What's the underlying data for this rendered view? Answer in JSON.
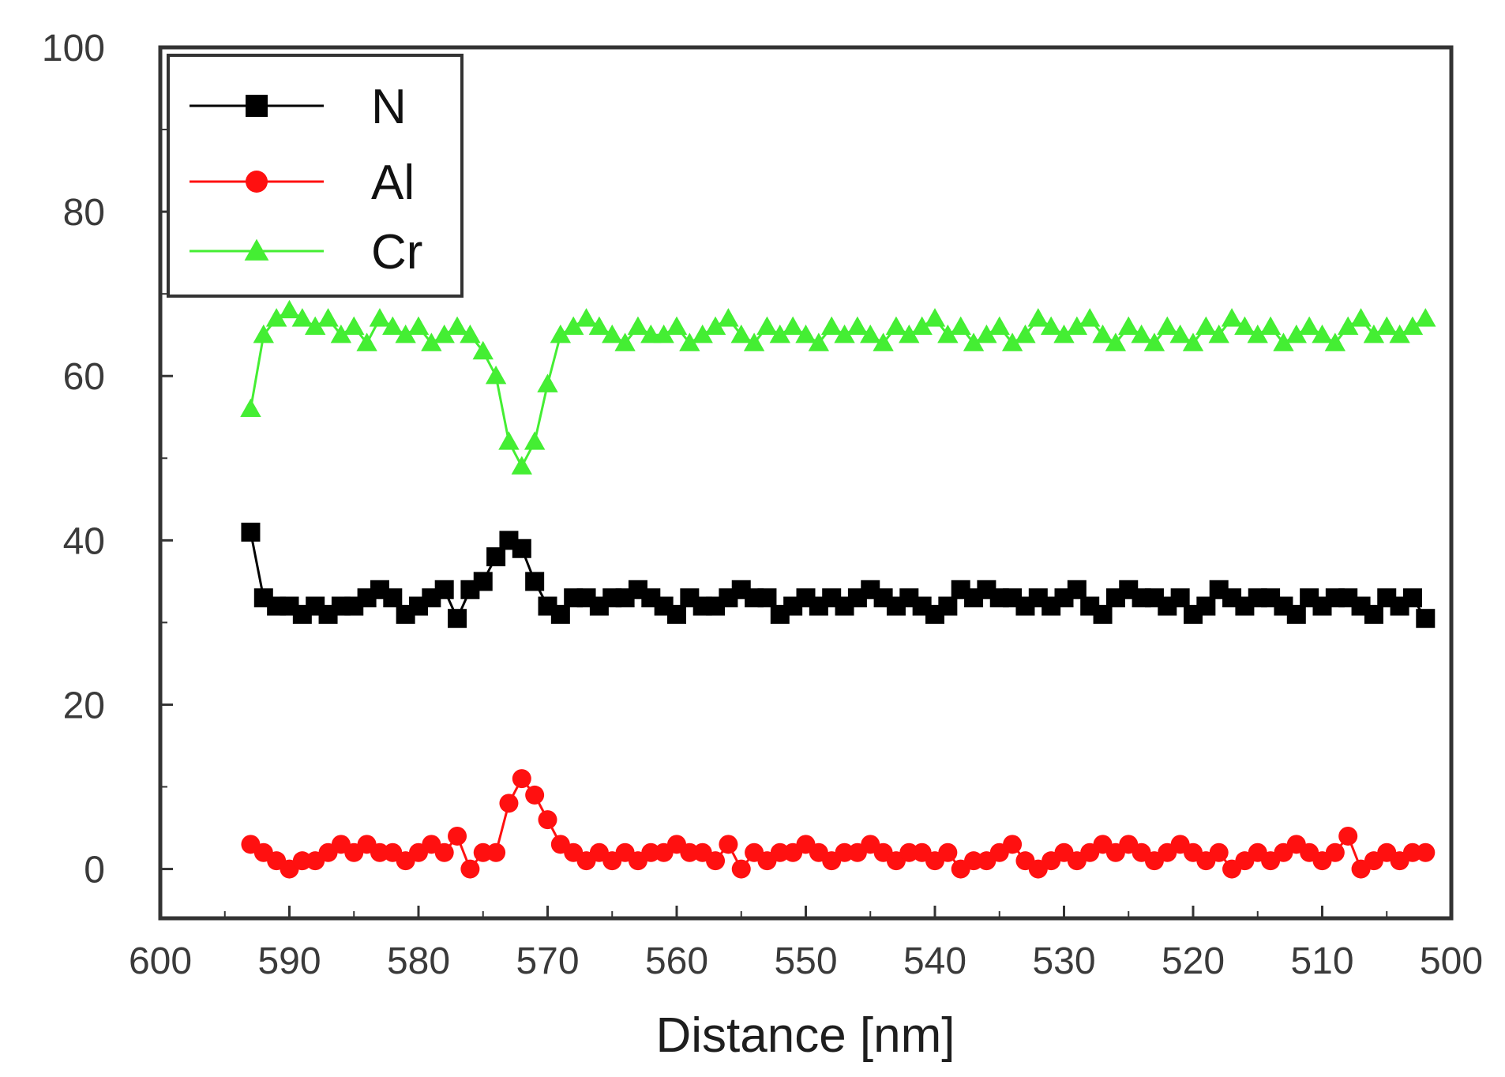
{
  "chart_data": {
    "type": "scatter",
    "title": "",
    "xlabel": "Distance [nm]",
    "ylabel": "",
    "xlim": [
      600,
      500
    ],
    "ylim": [
      -6,
      100
    ],
    "x_reversed": true,
    "xticks": [
      600,
      590,
      580,
      570,
      560,
      550,
      540,
      530,
      520,
      510,
      500
    ],
    "xtick_labels": [
      "600",
      "590",
      "580",
      "570",
      "560",
      "550",
      "540",
      "530",
      "520",
      "510",
      "500"
    ],
    "yticks": [
      0,
      20,
      40,
      60,
      80,
      100
    ],
    "ytick_labels": [
      "0",
      "20",
      "40",
      "60",
      "80",
      "100"
    ],
    "grid": false,
    "legend_position": "top-left",
    "series": [
      {
        "name": "N",
        "color": "#000000",
        "marker": "square",
        "x": [
          593,
          592,
          591,
          590,
          589,
          588,
          587,
          586,
          585,
          584,
          583,
          582,
          581,
          580,
          579,
          578,
          577,
          576,
          575,
          574,
          573,
          572,
          571,
          570,
          569,
          568,
          567,
          566,
          565,
          564,
          563,
          562,
          561,
          560,
          559,
          558,
          557,
          556,
          555,
          554,
          553,
          552,
          551,
          550,
          549,
          548,
          547,
          546,
          545,
          544,
          543,
          542,
          541,
          540,
          539,
          538,
          537,
          536,
          535,
          534,
          533,
          532,
          531,
          530,
          529,
          528,
          527,
          526,
          525,
          524,
          523,
          522,
          521,
          520,
          519,
          518,
          517,
          516,
          515,
          514,
          513,
          512,
          511,
          510,
          509,
          508,
          507,
          506,
          505,
          504,
          503,
          502
        ],
        "y": [
          41,
          33,
          32,
          32,
          31,
          32,
          31,
          32,
          32,
          33,
          34,
          33,
          31,
          32,
          33,
          34,
          30.5,
          34,
          35,
          38,
          40,
          39,
          35,
          32,
          31,
          33,
          33,
          32,
          33,
          33,
          34,
          33,
          32,
          31,
          33,
          32,
          32,
          33,
          34,
          33,
          33,
          31,
          32,
          33,
          32,
          33,
          32,
          33,
          34,
          33,
          32,
          33,
          32,
          31,
          32,
          34,
          33,
          34,
          33,
          33,
          32,
          33,
          32,
          33,
          34,
          32,
          31,
          33,
          34,
          33,
          33,
          32,
          33,
          31,
          32,
          34,
          33,
          32,
          33,
          33,
          32,
          31,
          33,
          32,
          33,
          33,
          32,
          31,
          33,
          32,
          33,
          30.5
        ]
      },
      {
        "name": "Al",
        "color": "#ff1010",
        "marker": "circle",
        "x": [
          593,
          592,
          591,
          590,
          589,
          588,
          587,
          586,
          585,
          584,
          583,
          582,
          581,
          580,
          579,
          578,
          577,
          576,
          575,
          574,
          573,
          572,
          571,
          570,
          569,
          568,
          567,
          566,
          565,
          564,
          563,
          562,
          561,
          560,
          559,
          558,
          557,
          556,
          555,
          554,
          553,
          552,
          551,
          550,
          549,
          548,
          547,
          546,
          545,
          544,
          543,
          542,
          541,
          540,
          539,
          538,
          537,
          536,
          535,
          534,
          533,
          532,
          531,
          530,
          529,
          528,
          527,
          526,
          525,
          524,
          523,
          522,
          521,
          520,
          519,
          518,
          517,
          516,
          515,
          514,
          513,
          512,
          511,
          510,
          509,
          508,
          507,
          506,
          505,
          504,
          503,
          502
        ],
        "y": [
          3,
          2,
          1,
          0,
          1,
          1,
          2,
          3,
          2,
          3,
          2,
          2,
          1,
          2,
          3,
          2,
          4,
          0,
          2,
          2,
          8,
          11,
          9,
          6,
          3,
          2,
          1,
          2,
          1,
          2,
          1,
          2,
          2,
          3,
          2,
          2,
          1,
          3,
          0,
          2,
          1,
          2,
          2,
          3,
          2,
          1,
          2,
          2,
          3,
          2,
          1,
          2,
          2,
          1,
          2,
          0,
          1,
          1,
          2,
          3,
          1,
          0,
          1,
          2,
          1,
          2,
          3,
          2,
          3,
          2,
          1,
          2,
          3,
          2,
          1,
          2,
          0,
          1,
          2,
          1,
          2,
          3,
          2,
          1,
          2,
          4,
          0,
          1,
          2,
          1,
          2,
          2
        ]
      },
      {
        "name": "Cr",
        "color": "#44ee33",
        "marker": "triangle",
        "x": [
          593,
          592,
          591,
          590,
          589,
          588,
          587,
          586,
          585,
          584,
          583,
          582,
          581,
          580,
          579,
          578,
          577,
          576,
          575,
          574,
          573,
          572,
          571,
          570,
          569,
          568,
          567,
          566,
          565,
          564,
          563,
          562,
          561,
          560,
          559,
          558,
          557,
          556,
          555,
          554,
          553,
          552,
          551,
          550,
          549,
          548,
          547,
          546,
          545,
          544,
          543,
          542,
          541,
          540,
          539,
          538,
          537,
          536,
          535,
          534,
          533,
          532,
          531,
          530,
          529,
          528,
          527,
          526,
          525,
          524,
          523,
          522,
          521,
          520,
          519,
          518,
          517,
          516,
          515,
          514,
          513,
          512,
          511,
          510,
          509,
          508,
          507,
          506,
          505,
          504,
          503,
          502
        ],
        "y": [
          56,
          65,
          67,
          68,
          67,
          66,
          67,
          65,
          66,
          64,
          67,
          66,
          65,
          66,
          64,
          65,
          66,
          65,
          63,
          60,
          52,
          49,
          52,
          59,
          65,
          66,
          67,
          66,
          65,
          64,
          66,
          65,
          65,
          66,
          64,
          65,
          66,
          67,
          65,
          64,
          66,
          65,
          66,
          65,
          64,
          66,
          65,
          66,
          65,
          64,
          66,
          65,
          66,
          67,
          65,
          66,
          64,
          65,
          66,
          64,
          65,
          67,
          66,
          65,
          66,
          67,
          65,
          64,
          66,
          65,
          64,
          66,
          65,
          64,
          66,
          65,
          67,
          66,
          65,
          66,
          64,
          65,
          66,
          65,
          64,
          66,
          67,
          65,
          66,
          65,
          66,
          67
        ]
      }
    ]
  }
}
